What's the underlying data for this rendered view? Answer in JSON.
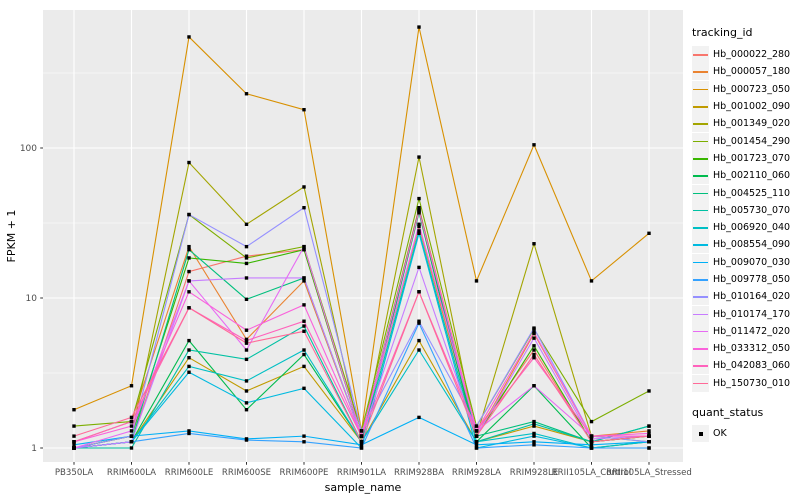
{
  "chart_data": {
    "type": "line",
    "title": "",
    "xlabel": "sample_name",
    "ylabel": "FPKM + 1",
    "x_categories": [
      "PB350LA",
      "RRIM600LA",
      "RRIM600LE",
      "RRIM600SE",
      "RRIM600PE",
      "RRIM901LA",
      "RRIM928BA",
      "RRIM928LA",
      "RRIM928LE",
      "RRII105LA_Control",
      "RRII105LA_Stressed"
    ],
    "y_scale": "log10",
    "y_ticks": [
      1,
      10,
      100
    ],
    "y_tick_labels": [
      "1",
      "10",
      "100"
    ],
    "y_minor_ticks": [
      3.162,
      31.62,
      316.2
    ],
    "ylim_plotted": [
      0.81,
      830
    ],
    "grid": true,
    "legend_position": "right",
    "legend_title": "tracking_id",
    "point_marker": "filled-square",
    "point_color": "#000000",
    "panel_background": "#EBEBEB",
    "gridline_color": "#FFFFFF",
    "tick_label_color": "#4D4D4D",
    "series": [
      {
        "name": "Hb_000022_280",
        "color": "#F8766D",
        "values": [
          1.0,
          1.1,
          15,
          19,
          21,
          1.2,
          40,
          1.3,
          4.5,
          1.1,
          1.2
        ]
      },
      {
        "name": "Hb_000057_180",
        "color": "#EA8331",
        "values": [
          1.1,
          1.5,
          22,
          5.3,
          13,
          1.2,
          30,
          1.2,
          5.8,
          1.2,
          1.3
        ]
      },
      {
        "name": "Hb_000723_050",
        "color": "#D89000",
        "values": [
          1.8,
          2.6,
          550,
          230,
          180,
          1.3,
          640,
          13,
          105,
          13,
          27
        ]
      },
      {
        "name": "Hb_001002_090",
        "color": "#C09B00",
        "values": [
          1.0,
          1.1,
          4.0,
          2.4,
          3.5,
          1.1,
          5.2,
          1.1,
          1.4,
          1.1,
          1.2
        ]
      },
      {
        "name": "Hb_001349_020",
        "color": "#A3A500",
        "values": [
          1.0,
          1.2,
          80,
          31,
          55,
          1.1,
          87,
          1.2,
          23,
          1.2,
          1.1
        ]
      },
      {
        "name": "Hb_001454_290",
        "color": "#7CAE00",
        "values": [
          1.4,
          1.5,
          36,
          18.5,
          22,
          1.3,
          46,
          1.4,
          6.2,
          1.5,
          2.4
        ]
      },
      {
        "name": "Hb_001723_070",
        "color": "#39B600",
        "values": [
          1.0,
          1.2,
          18.5,
          17,
          21,
          1.2,
          39,
          1.2,
          4.8,
          1.1,
          1.2
        ]
      },
      {
        "name": "Hb_002110_060",
        "color": "#00BB4E",
        "values": [
          1.0,
          1.1,
          5.2,
          1.8,
          4.2,
          1.1,
          37,
          1.1,
          2.6,
          1.0,
          1.1
        ]
      },
      {
        "name": "Hb_004525_110",
        "color": "#00BF7D",
        "values": [
          1.0,
          1.1,
          21,
          9.8,
          13.6,
          1.2,
          38,
          1.2,
          1.5,
          1.1,
          1.4
        ]
      },
      {
        "name": "Hb_005730_070",
        "color": "#00C1A3",
        "values": [
          1.0,
          1.0,
          4.5,
          3.9,
          6.5,
          1.1,
          28,
          1.1,
          1.45,
          1.1,
          1.4
        ]
      },
      {
        "name": "Hb_006920_040",
        "color": "#00BFC4",
        "values": [
          1.0,
          1.1,
          3.5,
          2.8,
          4.5,
          1.1,
          4.5,
          1.1,
          1.25,
          1.0,
          1.1
        ]
      },
      {
        "name": "Hb_008554_090",
        "color": "#00BAE0",
        "values": [
          1.0,
          1.1,
          3.2,
          2.0,
          2.5,
          1.0,
          27,
          1.0,
          1.2,
          1.0,
          1.0
        ]
      },
      {
        "name": "Hb_009070_030",
        "color": "#00B0F6",
        "values": [
          1.05,
          1.2,
          1.3,
          1.15,
          1.2,
          1.05,
          1.6,
          1.05,
          1.1,
          1.05,
          1.1
        ]
      },
      {
        "name": "Hb_009778_050",
        "color": "#35A2FF",
        "values": [
          1.0,
          1.1,
          1.25,
          1.13,
          1.1,
          1.0,
          6.8,
          1.0,
          1.05,
          1.0,
          1.0
        ]
      },
      {
        "name": "Hb_010164_020",
        "color": "#9590FF",
        "values": [
          1.0,
          1.2,
          36,
          22,
          40,
          1.3,
          7.0,
          1.4,
          6.3,
          1.2,
          1.1
        ]
      },
      {
        "name": "Hb_010174_170",
        "color": "#C77CFF",
        "values": [
          1.0,
          1.1,
          13,
          13.6,
          13.6,
          1.2,
          16,
          1.2,
          5.4,
          1.15,
          1.2
        ]
      },
      {
        "name": "Hb_011472_020",
        "color": "#E76BF3",
        "values": [
          1.0,
          1.3,
          13,
          4.5,
          22,
          1.2,
          31,
          1.3,
          2.6,
          1.2,
          1.2
        ]
      },
      {
        "name": "Hb_033312_050",
        "color": "#FA62DB",
        "values": [
          1.1,
          1.4,
          11,
          6.1,
          9,
          1.2,
          38,
          1.3,
          5.9,
          1.2,
          1.25
        ]
      },
      {
        "name": "Hb_042083_060",
        "color": "#FF62BC",
        "values": [
          1.1,
          1.5,
          8.6,
          5.2,
          7,
          1.2,
          11,
          1.3,
          4.0,
          1.2,
          1.2
        ]
      },
      {
        "name": "Hb_150730_010",
        "color": "#FF6A98",
        "values": [
          1.2,
          1.6,
          8.6,
          5.0,
          6,
          1.1,
          11,
          1.2,
          4.2,
          1.1,
          1.2
        ]
      }
    ],
    "quant_legend": {
      "title": "quant_status",
      "items": [
        {
          "label": "OK"
        }
      ]
    }
  }
}
